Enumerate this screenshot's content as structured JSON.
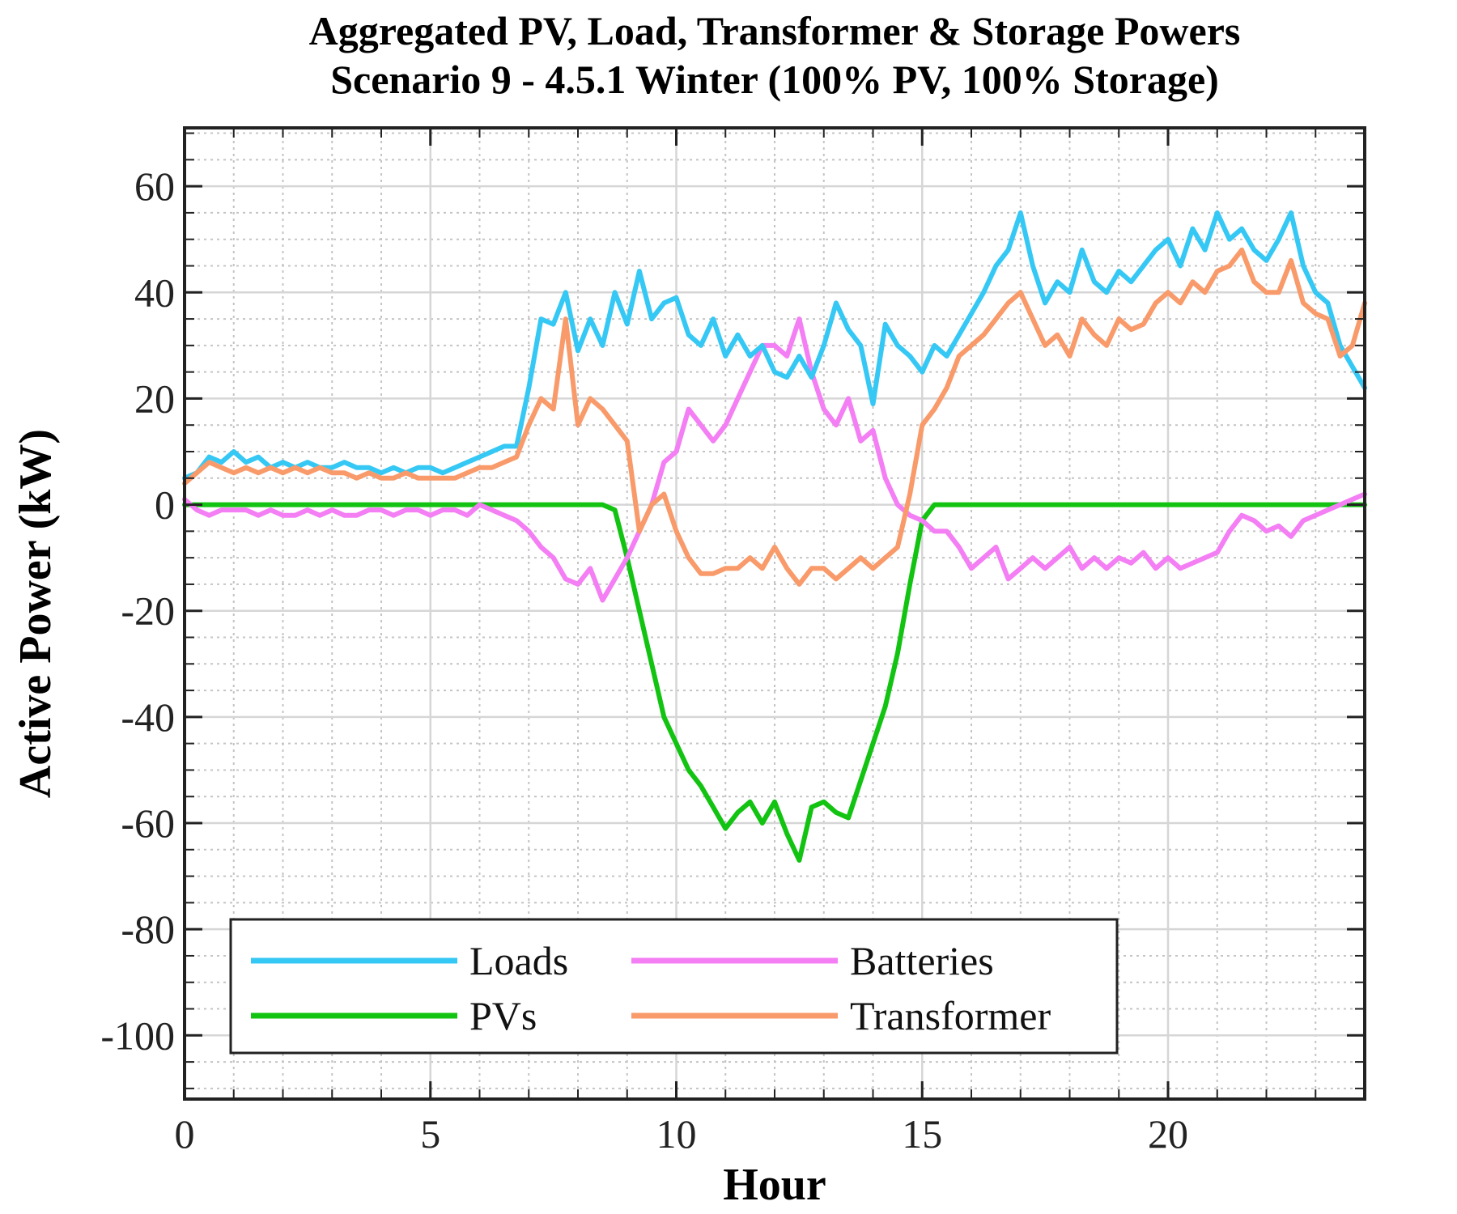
{
  "chart_data": {
    "type": "line",
    "title": "Aggregated PV, Load, Transformer & Storage Powers",
    "subtitle": "Scenario 9 - 4.5.1 Winter (100% PV, 100% Storage)",
    "xlabel": "Hour",
    "ylabel": "Active Power (kW)",
    "xlim": [
      0,
      24
    ],
    "ylim": [
      -112,
      71
    ],
    "xticks": [
      0,
      5,
      10,
      15,
      20
    ],
    "xtick_labels": [
      "0",
      "5",
      "10",
      "15",
      "20"
    ],
    "yticks": [
      60,
      40,
      20,
      0,
      -20,
      -40,
      -60,
      -80,
      -100
    ],
    "ytick_labels": [
      "60",
      "40",
      "20",
      "0",
      "-20",
      "-40",
      "-60",
      "-80",
      "-100"
    ],
    "grid": true,
    "minor_grid": true,
    "legend_position": "bottom-left",
    "x": [
      0,
      0.25,
      0.5,
      0.75,
      1,
      1.25,
      1.5,
      1.75,
      2,
      2.25,
      2.5,
      2.75,
      3,
      3.25,
      3.5,
      3.75,
      4,
      4.25,
      4.5,
      4.75,
      5,
      5.25,
      5.5,
      5.75,
      6,
      6.25,
      6.5,
      6.75,
      7,
      7.25,
      7.5,
      7.75,
      8,
      8.25,
      8.5,
      8.75,
      9,
      9.25,
      9.5,
      9.75,
      10,
      10.25,
      10.5,
      10.75,
      11,
      11.25,
      11.5,
      11.75,
      12,
      12.25,
      12.5,
      12.75,
      13,
      13.25,
      13.5,
      13.75,
      14,
      14.25,
      14.5,
      14.75,
      15,
      15.25,
      15.5,
      15.75,
      16,
      16.25,
      16.5,
      16.75,
      17,
      17.25,
      17.5,
      17.75,
      18,
      18.25,
      18.5,
      18.75,
      19,
      19.25,
      19.5,
      19.75,
      20,
      20.25,
      20.5,
      20.75,
      21,
      21.25,
      21.5,
      21.75,
      22,
      22.25,
      22.5,
      22.75,
      23,
      23.25,
      23.5,
      23.75,
      24
    ],
    "series": [
      {
        "name": "Loads",
        "color": "#36c8f4",
        "values": [
          5,
          6,
          9,
          8,
          10,
          8,
          9,
          7,
          8,
          7,
          8,
          7,
          7,
          8,
          7,
          7,
          6,
          7,
          6,
          7,
          7,
          6,
          7,
          8,
          9,
          10,
          11,
          11,
          22,
          35,
          34,
          40,
          29,
          35,
          30,
          40,
          34,
          44,
          35,
          38,
          39,
          32,
          30,
          35,
          28,
          32,
          28,
          30,
          25,
          24,
          28,
          24,
          30,
          38,
          33,
          30,
          19,
          34,
          30,
          28,
          25,
          30,
          28,
          32,
          36,
          40,
          45,
          48,
          55,
          45,
          38,
          42,
          40,
          48,
          42,
          40,
          44,
          42,
          45,
          48,
          50,
          45,
          52,
          48,
          55,
          50,
          52,
          48,
          46,
          50,
          55,
          45,
          40,
          38,
          30,
          26,
          22
        ]
      },
      {
        "name": "PVs",
        "color": "#12c312",
        "values": [
          0,
          0,
          0,
          0,
          0,
          0,
          0,
          0,
          0,
          0,
          0,
          0,
          0,
          0,
          0,
          0,
          0,
          0,
          0,
          0,
          0,
          0,
          0,
          0,
          0,
          0,
          0,
          0,
          0,
          0,
          0,
          0,
          0,
          0,
          0,
          -1,
          -10,
          -20,
          -30,
          -40,
          -45,
          -50,
          -53,
          -57,
          -61,
          -58,
          -56,
          -60,
          -56,
          -62,
          -67,
          -57,
          -56,
          -58,
          -59,
          -52,
          -45,
          -38,
          -28,
          -15,
          -3,
          0,
          0,
          0,
          0,
          0,
          0,
          0,
          0,
          0,
          0,
          0,
          0,
          0,
          0,
          0,
          0,
          0,
          0,
          0,
          0,
          0,
          0,
          0,
          0,
          0,
          0,
          0,
          0,
          0,
          0,
          0,
          0,
          0,
          0,
          0,
          0
        ]
      },
      {
        "name": "Batteries",
        "color": "#f47ef4",
        "values": [
          1,
          -1,
          -2,
          -1,
          -1,
          -1,
          -2,
          -1,
          -2,
          -2,
          -1,
          -2,
          -1,
          -2,
          -2,
          -1,
          -1,
          -2,
          -1,
          -1,
          -2,
          -1,
          -1,
          -2,
          0,
          -1,
          -2,
          -3,
          -5,
          -8,
          -10,
          -14,
          -15,
          -12,
          -18,
          -14,
          -10,
          -5,
          0,
          8,
          10,
          18,
          15,
          12,
          15,
          20,
          25,
          30,
          30,
          28,
          35,
          25,
          18,
          15,
          20,
          12,
          14,
          5,
          0,
          -2,
          -3,
          -5,
          -5,
          -8,
          -12,
          -10,
          -8,
          -14,
          -12,
          -10,
          -12,
          -10,
          -8,
          -12,
          -10,
          -12,
          -10,
          -11,
          -9,
          -12,
          -10,
          -12,
          -11,
          -10,
          -9,
          -5,
          -2,
          -3,
          -5,
          -4,
          -6,
          -3,
          -2,
          -1,
          0,
          1,
          2
        ]
      },
      {
        "name": "Transformer",
        "color": "#f99a6a",
        "values": [
          4,
          6,
          8,
          7,
          6,
          7,
          6,
          7,
          6,
          7,
          6,
          7,
          6,
          6,
          5,
          6,
          5,
          5,
          6,
          5,
          5,
          5,
          5,
          6,
          7,
          7,
          8,
          9,
          15,
          20,
          18,
          35,
          15,
          20,
          18,
          15,
          12,
          -5,
          0,
          2,
          -5,
          -10,
          -13,
          -13,
          -12,
          -12,
          -10,
          -12,
          -8,
          -12,
          -15,
          -12,
          -12,
          -14,
          -12,
          -10,
          -12,
          -10,
          -8,
          2,
          15,
          18,
          22,
          28,
          30,
          32,
          35,
          38,
          40,
          35,
          30,
          32,
          28,
          35,
          32,
          30,
          35,
          33,
          34,
          38,
          40,
          38,
          42,
          40,
          44,
          45,
          48,
          42,
          40,
          40,
          46,
          38,
          36,
          35,
          28,
          30,
          38
        ]
      }
    ]
  }
}
